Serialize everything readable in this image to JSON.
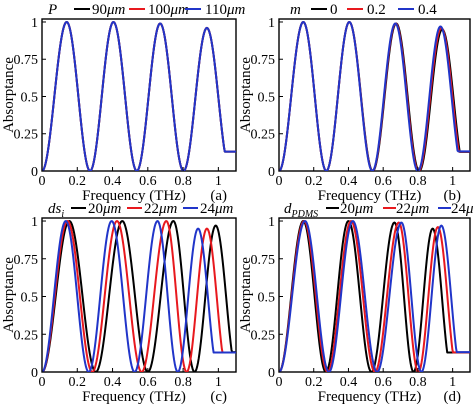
{
  "chart_data": [
    {
      "panel": "(a)",
      "type": "line",
      "xlabel": "Frequency (THz)",
      "ylabel": "Absorptance",
      "xlim": [
        0,
        1.1
      ],
      "ylim": [
        0,
        1.02
      ],
      "xticks": [
        "0",
        "0.2",
        "0.4",
        "0.6",
        "0.8",
        "1"
      ],
      "yticks": [
        "0",
        "0.25",
        "0.5",
        "0.75",
        "1"
      ],
      "legend_symbol": "P",
      "legend_position": "top",
      "series": [
        {
          "name": "90μm",
          "color": "#000000",
          "peaks": [
            0.14,
            0.405,
            0.67,
            0.935
          ],
          "peak_values": [
            1.0,
            1.0,
            0.99,
            0.96
          ]
        },
        {
          "name": "100μm",
          "color": "#e8191e",
          "peaks": [
            0.14,
            0.405,
            0.67,
            0.935
          ],
          "peak_values": [
            1.0,
            1.0,
            0.99,
            0.96
          ]
        },
        {
          "name": "110μm",
          "color": "#2135c9",
          "peaks": [
            0.14,
            0.405,
            0.67,
            0.935
          ],
          "peak_values": [
            1.0,
            1.0,
            0.99,
            0.96
          ]
        }
      ]
    },
    {
      "panel": "(b)",
      "type": "line",
      "xlabel": "Frequency (THz)",
      "ylabel": "Absorptance",
      "xlim": [
        0,
        1.1
      ],
      "ylim": [
        0,
        1.02
      ],
      "xticks": [
        "0",
        "0.2",
        "0.4",
        "0.6",
        "0.8",
        "1"
      ],
      "yticks": [
        "0",
        "0.25",
        "0.5",
        "0.75",
        "1"
      ],
      "legend_symbol": "m",
      "legend_position": "top",
      "series": [
        {
          "name": "0",
          "color": "#000000",
          "peaks": [
            0.14,
            0.405,
            0.675,
            0.94
          ],
          "peak_values": [
            1.0,
            1.0,
            0.99,
            0.95
          ]
        },
        {
          "name": "0.2",
          "color": "#e8191e",
          "peaks": [
            0.14,
            0.405,
            0.672,
            0.935
          ],
          "peak_values": [
            1.0,
            1.0,
            0.99,
            0.96
          ]
        },
        {
          "name": "0.4",
          "color": "#2135c9",
          "peaks": [
            0.14,
            0.405,
            0.67,
            0.93
          ],
          "peak_values": [
            1.0,
            1.0,
            0.99,
            0.97
          ]
        }
      ]
    },
    {
      "panel": "(c)",
      "type": "line",
      "xlabel": "Frequency (THz)",
      "ylabel": "Absorptance",
      "xlim": [
        0,
        1.1
      ],
      "ylim": [
        0,
        1.02
      ],
      "xticks": [
        "0",
        "0.2",
        "0.4",
        "0.6",
        "0.8",
        "1"
      ],
      "yticks": [
        "0",
        "0.25",
        "0.5",
        "0.75",
        "1"
      ],
      "legend_symbol": "ds",
      "legend_symbol_sub": "i",
      "legend_position": "top",
      "series": [
        {
          "name": "20μm",
          "color": "#000000",
          "peaks": [
            0.155,
            0.455,
            0.745,
            0.985
          ],
          "peak_values": [
            1.0,
            1.0,
            1.0,
            0.97
          ]
        },
        {
          "name": "22μm",
          "color": "#e8191e",
          "peaks": [
            0.145,
            0.425,
            0.705,
            0.935
          ],
          "peak_values": [
            1.0,
            1.0,
            1.0,
            0.95
          ]
        },
        {
          "name": "24μm",
          "color": "#2135c9",
          "peaks": [
            0.135,
            0.395,
            0.655,
            0.885
          ],
          "peak_values": [
            1.0,
            1.0,
            1.0,
            0.95
          ]
        }
      ]
    },
    {
      "panel": "(d)",
      "type": "line",
      "xlabel": "Frequency (THz)",
      "ylabel": "Absorptance",
      "xlim": [
        0,
        1.1
      ],
      "ylim": [
        0,
        1.02
      ],
      "xticks": [
        "0",
        "0.2",
        "0.4",
        "0.6",
        "0.8",
        "1"
      ],
      "yticks": [
        "0",
        "0.25",
        "0.5",
        "0.75",
        "1"
      ],
      "legend_symbol": "d",
      "legend_symbol_sub": "PDMS",
      "legend_position": "top",
      "series": [
        {
          "name": "20μm",
          "color": "#000000",
          "peaks": [
            0.14,
            0.4,
            0.665,
            0.885
          ],
          "peak_values": [
            1.0,
            1.0,
            0.99,
            0.95
          ]
        },
        {
          "name": "22μm",
          "color": "#e8191e",
          "peaks": [
            0.145,
            0.415,
            0.69,
            0.915
          ],
          "peak_values": [
            1.0,
            1.0,
            0.99,
            0.96
          ]
        },
        {
          "name": "24μm",
          "color": "#2135c9",
          "peaks": [
            0.15,
            0.425,
            0.705,
            0.935
          ],
          "peak_values": [
            1.0,
            1.0,
            0.99,
            0.97
          ]
        }
      ]
    }
  ]
}
